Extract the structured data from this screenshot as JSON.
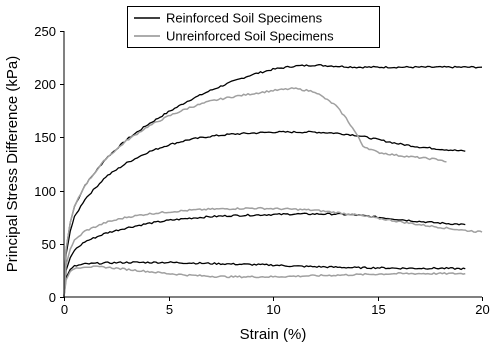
{
  "chart_data": {
    "type": "line",
    "title": "",
    "xlabel": "Strain (%)",
    "ylabel": "Principal Stress Difference (kPa)",
    "xlim": [
      0,
      20
    ],
    "ylim": [
      0,
      250
    ],
    "xticks": [
      0,
      5,
      10,
      15,
      20
    ],
    "yticks": [
      0,
      50,
      100,
      150,
      200,
      250
    ],
    "grid": false,
    "legend_position": "top-center",
    "legend": [
      {
        "name": "Reinforced Soil Specimens",
        "color": "#000000"
      },
      {
        "name": "Unreinforced Soil Specimens",
        "color": "#a0a0a0"
      }
    ],
    "series": [
      {
        "name": "Reinforced Soil Specimens",
        "color": "#000000",
        "x": [
          0,
          0.1,
          0.3,
          0.5,
          1,
          2,
          3,
          4,
          5,
          6,
          7,
          8,
          9,
          10,
          11,
          12,
          13,
          14,
          15,
          16,
          17,
          18,
          19,
          20
        ],
        "y": [
          0,
          45,
          70,
          85,
          105,
          130,
          148,
          162,
          174,
          185,
          194,
          202,
          209,
          214,
          217,
          218,
          217,
          216,
          216,
          216,
          216,
          216,
          216,
          216
        ]
      },
      {
        "name": "Reinforced Soil Specimens",
        "color": "#000000",
        "x": [
          0,
          0.1,
          0.3,
          0.5,
          1,
          2,
          3,
          4,
          5,
          6,
          7,
          8,
          9,
          10,
          11,
          12,
          13,
          14,
          15,
          16,
          17,
          18,
          19.2
        ],
        "y": [
          0,
          40,
          62,
          75,
          92,
          113,
          126,
          136,
          143,
          148,
          151,
          153,
          154,
          155,
          155,
          155,
          154,
          152,
          148,
          144,
          141,
          139,
          137
        ]
      },
      {
        "name": "Reinforced Soil Specimens",
        "color": "#000000",
        "x": [
          0,
          0.1,
          0.3,
          0.5,
          1,
          2,
          3,
          4,
          5,
          6,
          7,
          8,
          9,
          10,
          11,
          12,
          13,
          14,
          15,
          16,
          17,
          18,
          19.2
        ],
        "y": [
          0,
          25,
          37,
          44,
          52,
          60,
          65,
          69,
          72,
          74,
          75.5,
          76.5,
          77,
          77.5,
          78,
          78,
          78,
          77,
          75,
          73,
          71,
          69.5,
          68
        ]
      },
      {
        "name": "Reinforced Soil Specimens",
        "color": "#000000",
        "x": [
          0,
          0.1,
          0.3,
          0.5,
          1,
          2,
          3,
          4,
          5,
          6,
          7,
          8,
          9,
          10,
          11,
          12,
          13,
          14,
          15,
          16,
          17,
          18,
          19.2
        ],
        "y": [
          0,
          18,
          26,
          29,
          31,
          32,
          32.5,
          32.5,
          32.5,
          32,
          31.5,
          31,
          30.5,
          30,
          29,
          28.5,
          28,
          27.5,
          27.5,
          27,
          27,
          27,
          26.5
        ]
      },
      {
        "name": "Unreinforced Soil Specimens",
        "color": "#a0a0a0",
        "x": [
          0,
          0.1,
          0.3,
          0.5,
          1,
          2,
          3,
          4,
          5,
          6,
          7,
          8,
          9,
          10,
          11,
          12,
          13,
          13.5,
          14,
          14.3,
          15,
          16,
          17,
          18,
          18.3
        ],
        "y": [
          0,
          45,
          70,
          85,
          105,
          130,
          147,
          160,
          170,
          178,
          184,
          188,
          191,
          194,
          196,
          193,
          180,
          168,
          153,
          142,
          136,
          133,
          131,
          129,
          127
        ]
      },
      {
        "name": "Unreinforced Soil Specimens",
        "color": "#a0a0a0",
        "x": [
          0,
          0.1,
          0.3,
          0.5,
          1,
          2,
          3,
          4,
          5,
          6,
          7,
          8,
          9,
          10,
          11,
          12,
          13,
          14,
          15,
          16,
          17,
          18,
          19,
          20
        ],
        "y": [
          0,
          30,
          45,
          53,
          62,
          70,
          75,
          78,
          80,
          81.5,
          82.5,
          83,
          83.5,
          83,
          82.5,
          81.5,
          79.5,
          77,
          74,
          71,
          68,
          65.5,
          63,
          61
        ]
      },
      {
        "name": "Unreinforced Soil Specimens",
        "color": "#a0a0a0",
        "x": [
          0,
          0.1,
          0.3,
          0.5,
          1,
          2,
          3,
          4,
          5,
          6,
          7,
          8,
          9,
          10,
          11,
          12,
          13,
          14,
          15,
          16,
          17,
          18,
          19.2
        ],
        "y": [
          0,
          16,
          24,
          27,
          28.5,
          28,
          26,
          24,
          22,
          20.5,
          19.5,
          19,
          19,
          19,
          19.5,
          20,
          20.5,
          21,
          21.5,
          22,
          22,
          22,
          22
        ]
      }
    ]
  }
}
